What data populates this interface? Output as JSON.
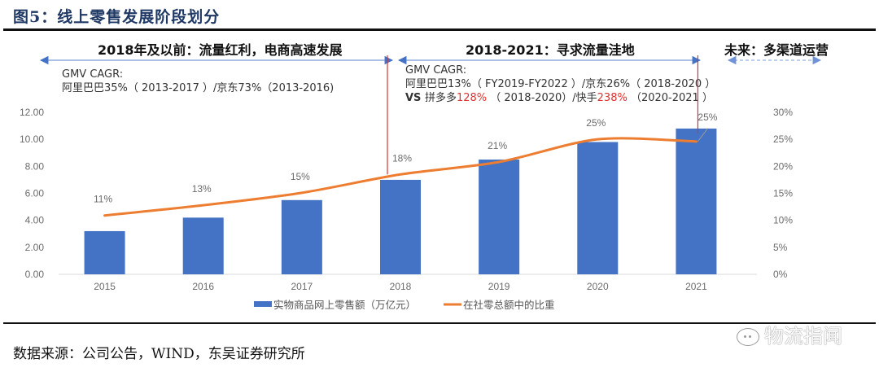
{
  "figure": {
    "title": "图5：线上零售发展阶段划分",
    "source": "数据来源：公司公告，WIND，东吴证券研究所",
    "watermark": "物流指闻"
  },
  "phases": [
    {
      "title": "2018年及以前：流量红利，电商高速发展",
      "note_lines": [
        [
          {
            "text": "GMV CAGR:"
          }
        ],
        [
          {
            "text": "阿里巴巴35%（ 2013-2017 ）/京东73%（2013-2016)"
          }
        ]
      ],
      "arrow_style": "solid"
    },
    {
      "title": "2018-2021：寻求流量洼地",
      "note_lines": [
        [
          {
            "text": "GMV CAGR:"
          }
        ],
        [
          {
            "text": "阿里巴巴13%（ FY2019-FY2022 ）/京东26%（ 2018-2020 ）"
          }
        ],
        [
          {
            "text": "VS ",
            "style": "bold"
          },
          {
            "text": "拼多多"
          },
          {
            "text": "128%",
            "style": "red"
          },
          {
            "text": " （ 2018-2020）/快手"
          },
          {
            "text": "238%",
            "style": "red"
          },
          {
            "text": " （2020-2021 ）"
          }
        ]
      ],
      "arrow_style": "solid"
    },
    {
      "title": "未来：多渠道运营",
      "note_lines": [],
      "arrow_style": "dashed"
    }
  ],
  "colors": {
    "bar": "#4472c4",
    "line": "#ed7d31",
    "divider": "#e03030",
    "arrow": "#4472c4",
    "title": "#1f3864"
  },
  "chart_data": {
    "type": "bar+line",
    "title": "",
    "categories": [
      "2015",
      "2016",
      "2017",
      "2018",
      "2019",
      "2020",
      "2021"
    ],
    "series": [
      {
        "name": "实物商品网上零售额（万亿元）",
        "type": "bar",
        "axis": "left",
        "values": [
          3.2,
          4.2,
          5.5,
          7.0,
          8.5,
          9.8,
          10.8
        ]
      },
      {
        "name": "在社零总额中的比重",
        "type": "line",
        "axis": "right",
        "values": [
          11,
          13,
          15,
          18,
          21,
          25,
          25
        ],
        "plotted_values": [
          10.9,
          12.8,
          15.1,
          18.5,
          20.8,
          25.0,
          24.6
        ],
        "labels": [
          "11%",
          "13%",
          "15%",
          "18%",
          "21%",
          "25%",
          "25%"
        ]
      }
    ],
    "left_axis": {
      "ylim": [
        0,
        12
      ],
      "ticks": [
        "0.00",
        "2.00",
        "4.00",
        "6.00",
        "8.00",
        "10.00",
        "12.00"
      ]
    },
    "right_axis": {
      "ylim": [
        0,
        30
      ],
      "ticks": [
        "0%",
        "5%",
        "10%",
        "15%",
        "20%",
        "25%",
        "30%"
      ]
    },
    "dividers_at": [
      "2018",
      "2021"
    ],
    "legend": {
      "position": "bottom",
      "entries": [
        "实物商品网上零售额（万亿元）",
        "在社零总额中的比重"
      ]
    },
    "grid": false
  }
}
